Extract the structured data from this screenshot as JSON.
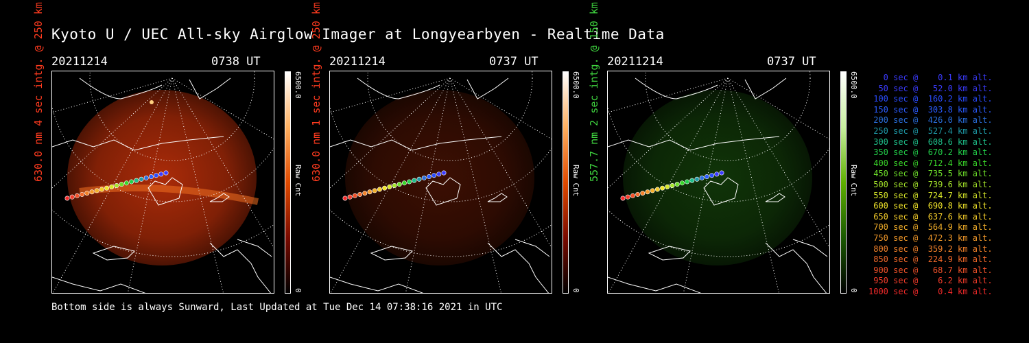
{
  "title": "Kyoto U / UEC All-sky Airglow Imager at Longyearbyen - Realtime Data",
  "footer": "Bottom side is always Sunward, Last Updated at Tue Dec 14 07:38:16 2021 in UTC",
  "panels": [
    {
      "date": "20211214",
      "time": "0738 UT",
      "ylabel": "630.0 nm 4 sec intg. @ 250 km",
      "ylabel_color": "#ff3b1f",
      "cbar_max": "6500.0",
      "cbar_unit": "Raw Cnt",
      "cbar_min": "0",
      "colormap": "red",
      "glow_strength": 0.85
    },
    {
      "date": "20211214",
      "time": "0737 UT",
      "ylabel": "630.0 nm 1 sec intg. @ 250 km",
      "ylabel_color": "#ff3b1f",
      "cbar_max": "6500.0",
      "cbar_unit": "Raw Cnt",
      "cbar_min": "0",
      "colormap": "red",
      "glow_strength": 0.3
    },
    {
      "date": "20211214",
      "time": "0737 UT",
      "ylabel": "557.7 nm 2 sec intg. @ 150 km",
      "ylabel_color": "#3fd43f",
      "cbar_max": "6500.0",
      "cbar_unit": "Raw Cnt",
      "cbar_min": "0",
      "colormap": "green",
      "glow_strength": 0.4
    }
  ],
  "legend": [
    {
      "text": "   0 sec @    0.1 km alt.",
      "color": "#3b3bff"
    },
    {
      "text": "  50 sec @   52.0 km alt.",
      "color": "#3b3bff"
    },
    {
      "text": " 100 sec @  160.2 km alt.",
      "color": "#2a4cff"
    },
    {
      "text": " 150 sec @  303.8 km alt.",
      "color": "#2a5cff"
    },
    {
      "text": " 200 sec @  426.0 km alt.",
      "color": "#2a70e0"
    },
    {
      "text": " 250 sec @  527.4 km alt.",
      "color": "#1e9aa8"
    },
    {
      "text": " 300 sec @  608.6 km alt.",
      "color": "#1ec08a"
    },
    {
      "text": " 350 sec @  670.2 km alt.",
      "color": "#22d24a"
    },
    {
      "text": " 400 sec @  712.4 km alt.",
      "color": "#3ad82a"
    },
    {
      "text": " 450 sec @  735.5 km alt.",
      "color": "#6ee02a"
    },
    {
      "text": " 500 sec @  739.6 km alt.",
      "color": "#a6e62a"
    },
    {
      "text": " 550 sec @  724.7 km alt.",
      "color": "#d8e82a"
    },
    {
      "text": " 600 sec @  690.8 km alt.",
      "color": "#f0e42a"
    },
    {
      "text": " 650 sec @  637.6 km alt.",
      "color": "#f4cc2a"
    },
    {
      "text": " 700 sec @  564.9 km alt.",
      "color": "#f4b02a"
    },
    {
      "text": " 750 sec @  472.3 km alt.",
      "color": "#f49a2a"
    },
    {
      "text": " 800 sec @  359.2 km alt.",
      "color": "#f4822a"
    },
    {
      "text": " 850 sec @  224.9 km alt.",
      "color": "#f46a2a"
    },
    {
      "text": " 900 sec @   68.7 km alt.",
      "color": "#f4522a"
    },
    {
      "text": " 950 sec @    6.2 km alt.",
      "color": "#f43c2a"
    },
    {
      "text": "1000 sec @    0.4 km alt.",
      "color": "#f42a2a"
    }
  ]
}
